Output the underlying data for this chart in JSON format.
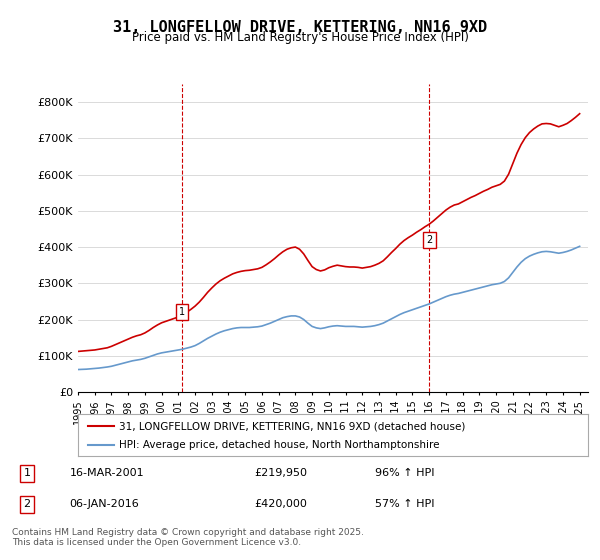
{
  "title": "31, LONGFELLOW DRIVE, KETTERING, NN16 9XD",
  "subtitle": "Price paid vs. HM Land Registry's House Price Index (HPI)",
  "ylabel": "",
  "xlim_start": 1995.0,
  "xlim_end": 2025.5,
  "ylim_min": 0,
  "ylim_max": 850000,
  "yticks": [
    0,
    100000,
    200000,
    300000,
    400000,
    500000,
    600000,
    700000,
    800000
  ],
  "ytick_labels": [
    "£0",
    "£100K",
    "£200K",
    "£300K",
    "£400K",
    "£500K",
    "£600K",
    "£700K",
    "£800K"
  ],
  "red_line_color": "#cc0000",
  "blue_line_color": "#6699cc",
  "vline_color": "#cc0000",
  "grid_color": "#cccccc",
  "background_color": "#ffffff",
  "sale1_x": 2001.21,
  "sale1_y": 219950,
  "sale1_label": "1",
  "sale2_x": 2016.02,
  "sale2_y": 420000,
  "sale2_label": "2",
  "legend_line1": "31, LONGFELLOW DRIVE, KETTERING, NN16 9XD (detached house)",
  "legend_line2": "HPI: Average price, detached house, North Northamptonshire",
  "annot1_date": "16-MAR-2001",
  "annot1_price": "£219,950",
  "annot1_hpi": "96% ↑ HPI",
  "annot2_date": "06-JAN-2016",
  "annot2_price": "£420,000",
  "annot2_hpi": "57% ↑ HPI",
  "footer": "Contains HM Land Registry data © Crown copyright and database right 2025.\nThis data is licensed under the Open Government Licence v3.0.",
  "hpi_data_x": [
    1995.0,
    1995.25,
    1995.5,
    1995.75,
    1996.0,
    1996.25,
    1996.5,
    1996.75,
    1997.0,
    1997.25,
    1997.5,
    1997.75,
    1998.0,
    1998.25,
    1998.5,
    1998.75,
    1999.0,
    1999.25,
    1999.5,
    1999.75,
    2000.0,
    2000.25,
    2000.5,
    2000.75,
    2001.0,
    2001.25,
    2001.5,
    2001.75,
    2002.0,
    2002.25,
    2002.5,
    2002.75,
    2003.0,
    2003.25,
    2003.5,
    2003.75,
    2004.0,
    2004.25,
    2004.5,
    2004.75,
    2005.0,
    2005.25,
    2005.5,
    2005.75,
    2006.0,
    2006.25,
    2006.5,
    2006.75,
    2007.0,
    2007.25,
    2007.5,
    2007.75,
    2008.0,
    2008.25,
    2008.5,
    2008.75,
    2009.0,
    2009.25,
    2009.5,
    2009.75,
    2010.0,
    2010.25,
    2010.5,
    2010.75,
    2011.0,
    2011.25,
    2011.5,
    2011.75,
    2012.0,
    2012.25,
    2012.5,
    2012.75,
    2013.0,
    2013.25,
    2013.5,
    2013.75,
    2014.0,
    2014.25,
    2014.5,
    2014.75,
    2015.0,
    2015.25,
    2015.5,
    2015.75,
    2016.0,
    2016.25,
    2016.5,
    2016.75,
    2017.0,
    2017.25,
    2017.5,
    2017.75,
    2018.0,
    2018.25,
    2018.5,
    2018.75,
    2019.0,
    2019.25,
    2019.5,
    2019.75,
    2020.0,
    2020.25,
    2020.5,
    2020.75,
    2021.0,
    2021.25,
    2021.5,
    2021.75,
    2022.0,
    2022.25,
    2022.5,
    2022.75,
    2023.0,
    2023.25,
    2023.5,
    2023.75,
    2024.0,
    2024.25,
    2024.5,
    2024.75,
    2025.0
  ],
  "hpi_data_y": [
    62000,
    62500,
    63000,
    64000,
    65000,
    66000,
    67500,
    69000,
    71000,
    74000,
    77000,
    80000,
    83000,
    86000,
    88000,
    90000,
    93000,
    97000,
    101000,
    105000,
    108000,
    110000,
    112000,
    114000,
    116000,
    118000,
    121000,
    124000,
    128000,
    134000,
    141000,
    148000,
    154000,
    160000,
    165000,
    169000,
    172000,
    175000,
    177000,
    178000,
    178000,
    178000,
    179000,
    180000,
    182000,
    186000,
    190000,
    195000,
    200000,
    205000,
    208000,
    210000,
    210000,
    207000,
    200000,
    190000,
    181000,
    177000,
    175000,
    177000,
    180000,
    182000,
    183000,
    182000,
    181000,
    181000,
    181000,
    180000,
    179000,
    180000,
    181000,
    183000,
    186000,
    190000,
    196000,
    202000,
    208000,
    214000,
    219000,
    223000,
    227000,
    231000,
    235000,
    239000,
    243000,
    248000,
    253000,
    258000,
    263000,
    267000,
    270000,
    272000,
    275000,
    278000,
    281000,
    284000,
    287000,
    290000,
    293000,
    296000,
    298000,
    300000,
    305000,
    315000,
    330000,
    345000,
    358000,
    368000,
    375000,
    380000,
    384000,
    387000,
    388000,
    387000,
    385000,
    383000,
    385000,
    388000,
    392000,
    397000,
    402000
  ],
  "red_data_x": [
    1995.0,
    1995.25,
    1995.5,
    1995.75,
    1996.0,
    1996.25,
    1996.5,
    1996.75,
    1997.0,
    1997.25,
    1997.5,
    1997.75,
    1998.0,
    1998.25,
    1998.5,
    1998.75,
    1999.0,
    1999.25,
    1999.5,
    1999.75,
    2000.0,
    2000.25,
    2000.5,
    2000.75,
    2001.0,
    2001.25,
    2001.5,
    2001.75,
    2002.0,
    2002.25,
    2002.5,
    2002.75,
    2003.0,
    2003.25,
    2003.5,
    2003.75,
    2004.0,
    2004.25,
    2004.5,
    2004.75,
    2005.0,
    2005.25,
    2005.5,
    2005.75,
    2006.0,
    2006.25,
    2006.5,
    2006.75,
    2007.0,
    2007.25,
    2007.5,
    2007.75,
    2008.0,
    2008.25,
    2008.5,
    2008.75,
    2009.0,
    2009.25,
    2009.5,
    2009.75,
    2010.0,
    2010.25,
    2010.5,
    2010.75,
    2011.0,
    2011.25,
    2011.5,
    2011.75,
    2012.0,
    2012.25,
    2012.5,
    2012.75,
    2013.0,
    2013.25,
    2013.5,
    2013.75,
    2014.0,
    2014.25,
    2014.5,
    2014.75,
    2015.0,
    2015.25,
    2015.5,
    2015.75,
    2016.0,
    2016.25,
    2016.5,
    2016.75,
    2017.0,
    2017.25,
    2017.5,
    2017.75,
    2018.0,
    2018.25,
    2018.5,
    2018.75,
    2019.0,
    2019.25,
    2019.5,
    2019.75,
    2020.0,
    2020.25,
    2020.5,
    2020.75,
    2021.0,
    2021.25,
    2021.5,
    2021.75,
    2022.0,
    2022.25,
    2022.5,
    2022.75,
    2023.0,
    2023.25,
    2023.5,
    2023.75,
    2024.0,
    2024.25,
    2024.5,
    2024.75,
    2025.0
  ],
  "red_data_y": [
    112000,
    113000,
    114000,
    115000,
    116000,
    118000,
    120000,
    122000,
    126000,
    131000,
    136000,
    141000,
    146000,
    151000,
    155000,
    158000,
    163000,
    170000,
    178000,
    185000,
    191000,
    195000,
    199000,
    203000,
    207000,
    213000,
    220000,
    228000,
    237000,
    248000,
    261000,
    275000,
    287000,
    298000,
    307000,
    314000,
    320000,
    326000,
    330000,
    333000,
    335000,
    336000,
    338000,
    340000,
    344000,
    351000,
    359000,
    368000,
    378000,
    387000,
    394000,
    398000,
    400000,
    394000,
    381000,
    363000,
    346000,
    338000,
    334000,
    337000,
    343000,
    347000,
    350000,
    348000,
    346000,
    345000,
    345000,
    344000,
    342000,
    344000,
    346000,
    350000,
    355000,
    362000,
    373000,
    385000,
    396000,
    408000,
    418000,
    426000,
    433000,
    441000,
    448000,
    456000,
    463000,
    472000,
    482000,
    492000,
    502000,
    510000,
    516000,
    519000,
    525000,
    531000,
    537000,
    542000,
    548000,
    554000,
    559000,
    565000,
    569000,
    573000,
    582000,
    601000,
    630000,
    659000,
    683000,
    702000,
    716000,
    726000,
    734000,
    740000,
    741000,
    740000,
    736000,
    732000,
    736000,
    741000,
    749000,
    758000,
    768000
  ]
}
